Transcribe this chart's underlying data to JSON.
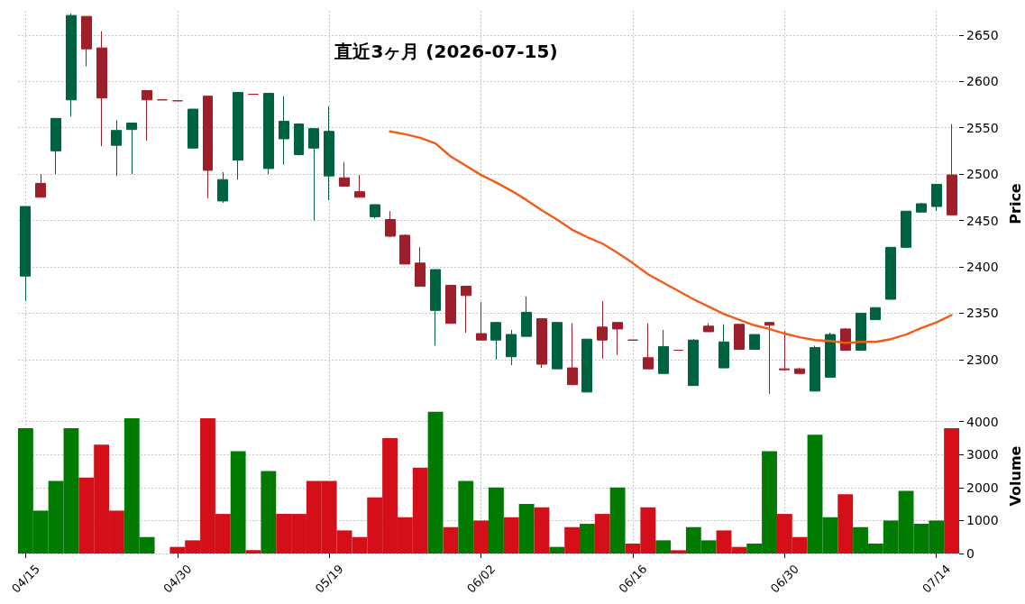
{
  "chart_data": [
    {
      "type": "candlestick",
      "title": "直近3ヶ月 (2026-07-15)",
      "ylabel": "Price",
      "categories": [
        null,
        null,
        null,
        null,
        null,
        null,
        null,
        null,
        null,
        null,
        null,
        null,
        null,
        null,
        null,
        null,
        null,
        null,
        null,
        null,
        null,
        null,
        null,
        null,
        null,
        null,
        null,
        null,
        null,
        null,
        null,
        null,
        null,
        null,
        null,
        null,
        null,
        null,
        null,
        null,
        null,
        null,
        null,
        null,
        null,
        null,
        null,
        null,
        null,
        null,
        null,
        null,
        null,
        null,
        null,
        null,
        null,
        null,
        null,
        null,
        null,
        null
      ],
      "ohlc": [
        [
          2390,
          2465,
          2363,
          2465
        ],
        [
          2490,
          2500,
          2475,
          2475
        ],
        [
          2525,
          2560,
          2500,
          2560
        ],
        [
          2580,
          2673,
          2562,
          2671
        ],
        [
          2670,
          2670,
          2616,
          2635
        ],
        [
          2636,
          2654,
          2530,
          2582
        ],
        [
          2531,
          2558,
          2498,
          2547
        ],
        [
          2548,
          2555,
          2500,
          2555
        ],
        [
          2590,
          2590,
          2536,
          2580
        ],
        [
          2580,
          2580,
          2580,
          2580
        ],
        [
          2579,
          2579,
          2579,
          2579
        ],
        [
          2528,
          2570,
          2528,
          2570
        ],
        [
          2584,
          2584,
          2474,
          2504
        ],
        [
          2471,
          2502,
          2469,
          2494
        ],
        [
          2515,
          2588,
          2494,
          2588
        ],
        [
          2586,
          2586,
          2586,
          2586
        ],
        [
          2506,
          2587,
          2500,
          2587
        ],
        [
          2538,
          2584,
          2510,
          2557
        ],
        [
          2521,
          2554,
          2520,
          2554
        ],
        [
          2528,
          2549,
          2450,
          2549
        ],
        [
          2498,
          2573,
          2472,
          2546
        ],
        [
          2496,
          2513,
          2487,
          2487
        ],
        [
          2481,
          2499,
          2475,
          2475
        ],
        [
          2454,
          2467,
          2452,
          2467
        ],
        [
          2451,
          2460,
          2432,
          2433
        ],
        [
          2434,
          2435,
          2403,
          2403
        ],
        [
          2404,
          2421,
          2379,
          2379
        ],
        [
          2353,
          2397,
          2315,
          2397
        ],
        [
          2380,
          2380,
          2339,
          2339
        ],
        [
          2379,
          2379,
          2329,
          2369
        ],
        [
          2328,
          2362,
          2321,
          2321
        ],
        [
          2321,
          2340,
          2300,
          2340
        ],
        [
          2303,
          2332,
          2294,
          2327
        ],
        [
          2325,
          2368,
          2325,
          2351
        ],
        [
          2344,
          2344,
          2291,
          2295
        ],
        [
          2290,
          2340,
          2290,
          2340
        ],
        [
          2291,
          2339,
          2273,
          2273
        ],
        [
          2265,
          2322,
          2265,
          2322
        ],
        [
          2335,
          2363,
          2301,
          2321
        ],
        [
          2340,
          2340,
          2305,
          2333
        ],
        [
          2321,
          2321,
          2321,
          2321
        ],
        [
          2302,
          2339,
          2290,
          2290
        ],
        [
          2285,
          2332,
          2285,
          2314
        ],
        [
          2310,
          2310,
          2310,
          2310
        ],
        [
          2272,
          2322,
          2272,
          2321
        ],
        [
          2336,
          2339,
          2330,
          2330
        ],
        [
          2291,
          2338,
          2291,
          2319
        ],
        [
          2338,
          2338,
          2311,
          2311
        ],
        [
          2311,
          2327,
          2311,
          2327
        ],
        [
          2340,
          2340,
          2263,
          2337
        ],
        [
          2290,
          2331,
          2288,
          2289
        ],
        [
          2290,
          2291,
          2285,
          2285
        ],
        [
          2266,
          2315,
          2266,
          2313
        ],
        [
          2281,
          2329,
          2281,
          2327
        ],
        [
          2333,
          2334,
          2310,
          2310
        ],
        [
          2310,
          2350,
          2310,
          2350
        ],
        [
          2343,
          2356,
          2343,
          2356
        ],
        [
          2365,
          2421,
          2365,
          2421
        ],
        [
          2421,
          2460,
          2421,
          2460
        ],
        [
          2459,
          2469,
          2459,
          2468
        ],
        [
          2465,
          2489,
          2460,
          2489
        ],
        [
          2499,
          2554,
          2456,
          2456
        ]
      ],
      "colors": [
        "#006340",
        "#9e1f2a",
        "#006340",
        "#006340",
        "#9e1f2a",
        "#9e1f2a",
        "#006340",
        "#006340",
        "#9e1f2a",
        "#9e1f2a",
        "#9e1f2a",
        "#006340",
        "#9e1f2a",
        "#006340",
        "#006340",
        "#9e1f2a",
        "#006340",
        "#006340",
        "#006340",
        "#006340",
        "#006340",
        "#9e1f2a",
        "#9e1f2a",
        "#006340",
        "#9e1f2a",
        "#9e1f2a",
        "#9e1f2a",
        "#006340",
        "#9e1f2a",
        "#9e1f2a",
        "#9e1f2a",
        "#006340",
        "#006340",
        "#006340",
        "#9e1f2a",
        "#006340",
        "#9e1f2a",
        "#006340",
        "#9e1f2a",
        "#9e1f2a",
        "#9e1f2a",
        "#9e1f2a",
        "#006340",
        "#9e1f2a",
        "#006340",
        "#9e1f2a",
        "#006340",
        "#9e1f2a",
        "#006340",
        "#9e1f2a",
        "#9e1f2a",
        "#9e1f2a",
        "#006340",
        "#006340",
        "#9e1f2a",
        "#006340",
        "#006340",
        "#006340",
        "#006340",
        "#006340",
        "#006340",
        "#9e1f2a"
      ],
      "series": [
        {
          "type": "line",
          "color": "#f25c19",
          "values": [
            null,
            null,
            null,
            null,
            null,
            null,
            null,
            null,
            null,
            null,
            null,
            null,
            null,
            null,
            null,
            null,
            null,
            null,
            null,
            null,
            null,
            null,
            null,
            null,
            2546,
            2543,
            2539,
            2533,
            2519,
            2509,
            2499,
            2491,
            2482,
            2472,
            2461,
            2451,
            2440,
            2432,
            2425,
            2415,
            2404,
            2392,
            2383,
            2374,
            2365,
            2357,
            2349,
            2343,
            2337,
            2333,
            2328,
            2324,
            2321,
            2320,
            2318,
            2319,
            2319,
            2322,
            2327,
            2334,
            2340,
            2348
          ]
        }
      ],
      "ylim": [
        2260,
        2676
      ],
      "yticks": [
        2300,
        2350,
        2400,
        2450,
        2500,
        2550,
        2600,
        2650
      ],
      "grid": true,
      "tick_labels": "y"
    },
    {
      "type": "bar",
      "ylabel": "Volume",
      "categories": [
        "04/15",
        null,
        null,
        null,
        null,
        null,
        null,
        null,
        null,
        null,
        "04/30",
        null,
        null,
        null,
        null,
        null,
        null,
        null,
        null,
        null,
        "05/19",
        null,
        null,
        null,
        null,
        null,
        null,
        null,
        null,
        null,
        "06/02",
        null,
        null,
        null,
        null,
        null,
        null,
        null,
        null,
        null,
        "06/16",
        null,
        null,
        null,
        null,
        null,
        null,
        null,
        null,
        null,
        "06/30",
        null,
        null,
        null,
        null,
        null,
        null,
        null,
        null,
        null,
        "07/14",
        null
      ],
      "values": [
        3800,
        1300,
        2200,
        3800,
        2300,
        3300,
        1300,
        4100,
        500,
        null,
        200,
        400,
        4100,
        1200,
        3100,
        100,
        2500,
        1200,
        1200,
        2200,
        2200,
        700,
        500,
        1700,
        3500,
        1100,
        2600,
        4300,
        800,
        2200,
        1000,
        2000,
        1100,
        1500,
        1400,
        200,
        800,
        900,
        1200,
        2000,
        300,
        1400,
        400,
        100,
        800,
        400,
        700,
        200,
        300,
        3100,
        1200,
        500,
        3600,
        1100,
        1800,
        800,
        300,
        1000,
        1900,
        900,
        1000,
        3800
      ],
      "colors": [
        "#007a00",
        "#007a00",
        "#007a00",
        "#007a00",
        "#d40f19",
        "#d40f19",
        "#d40f19",
        "#007a00",
        "#007a00",
        null,
        "#d40f19",
        "#d40f19",
        "#d40f19",
        "#d40f19",
        "#007a00",
        "#d40f19",
        "#007a00",
        "#d40f19",
        "#d40f19",
        "#d40f19",
        "#d40f19",
        "#d40f19",
        "#d40f19",
        "#d40f19",
        "#d40f19",
        "#d40f19",
        "#d40f19",
        "#007a00",
        "#d40f19",
        "#007a00",
        "#d40f19",
        "#007a00",
        "#d40f19",
        "#007a00",
        "#d40f19",
        "#007a00",
        "#d40f19",
        "#007a00",
        "#d40f19",
        "#007a00",
        "#d40f19",
        "#d40f19",
        "#007a00",
        "#d40f19",
        "#007a00",
        "#007a00",
        "#d40f19",
        "#d40f19",
        "#007a00",
        "#007a00",
        "#d40f19",
        "#d40f19",
        "#007a00",
        "#007a00",
        "#d40f19",
        "#007a00",
        "#007a00",
        "#007a00",
        "#007a00",
        "#007a00",
        "#007a00",
        "#d40f19"
      ],
      "ylim": [
        0,
        4700
      ],
      "yticks": [
        0,
        1000,
        2000,
        3000,
        4000
      ],
      "grid": true
    }
  ]
}
